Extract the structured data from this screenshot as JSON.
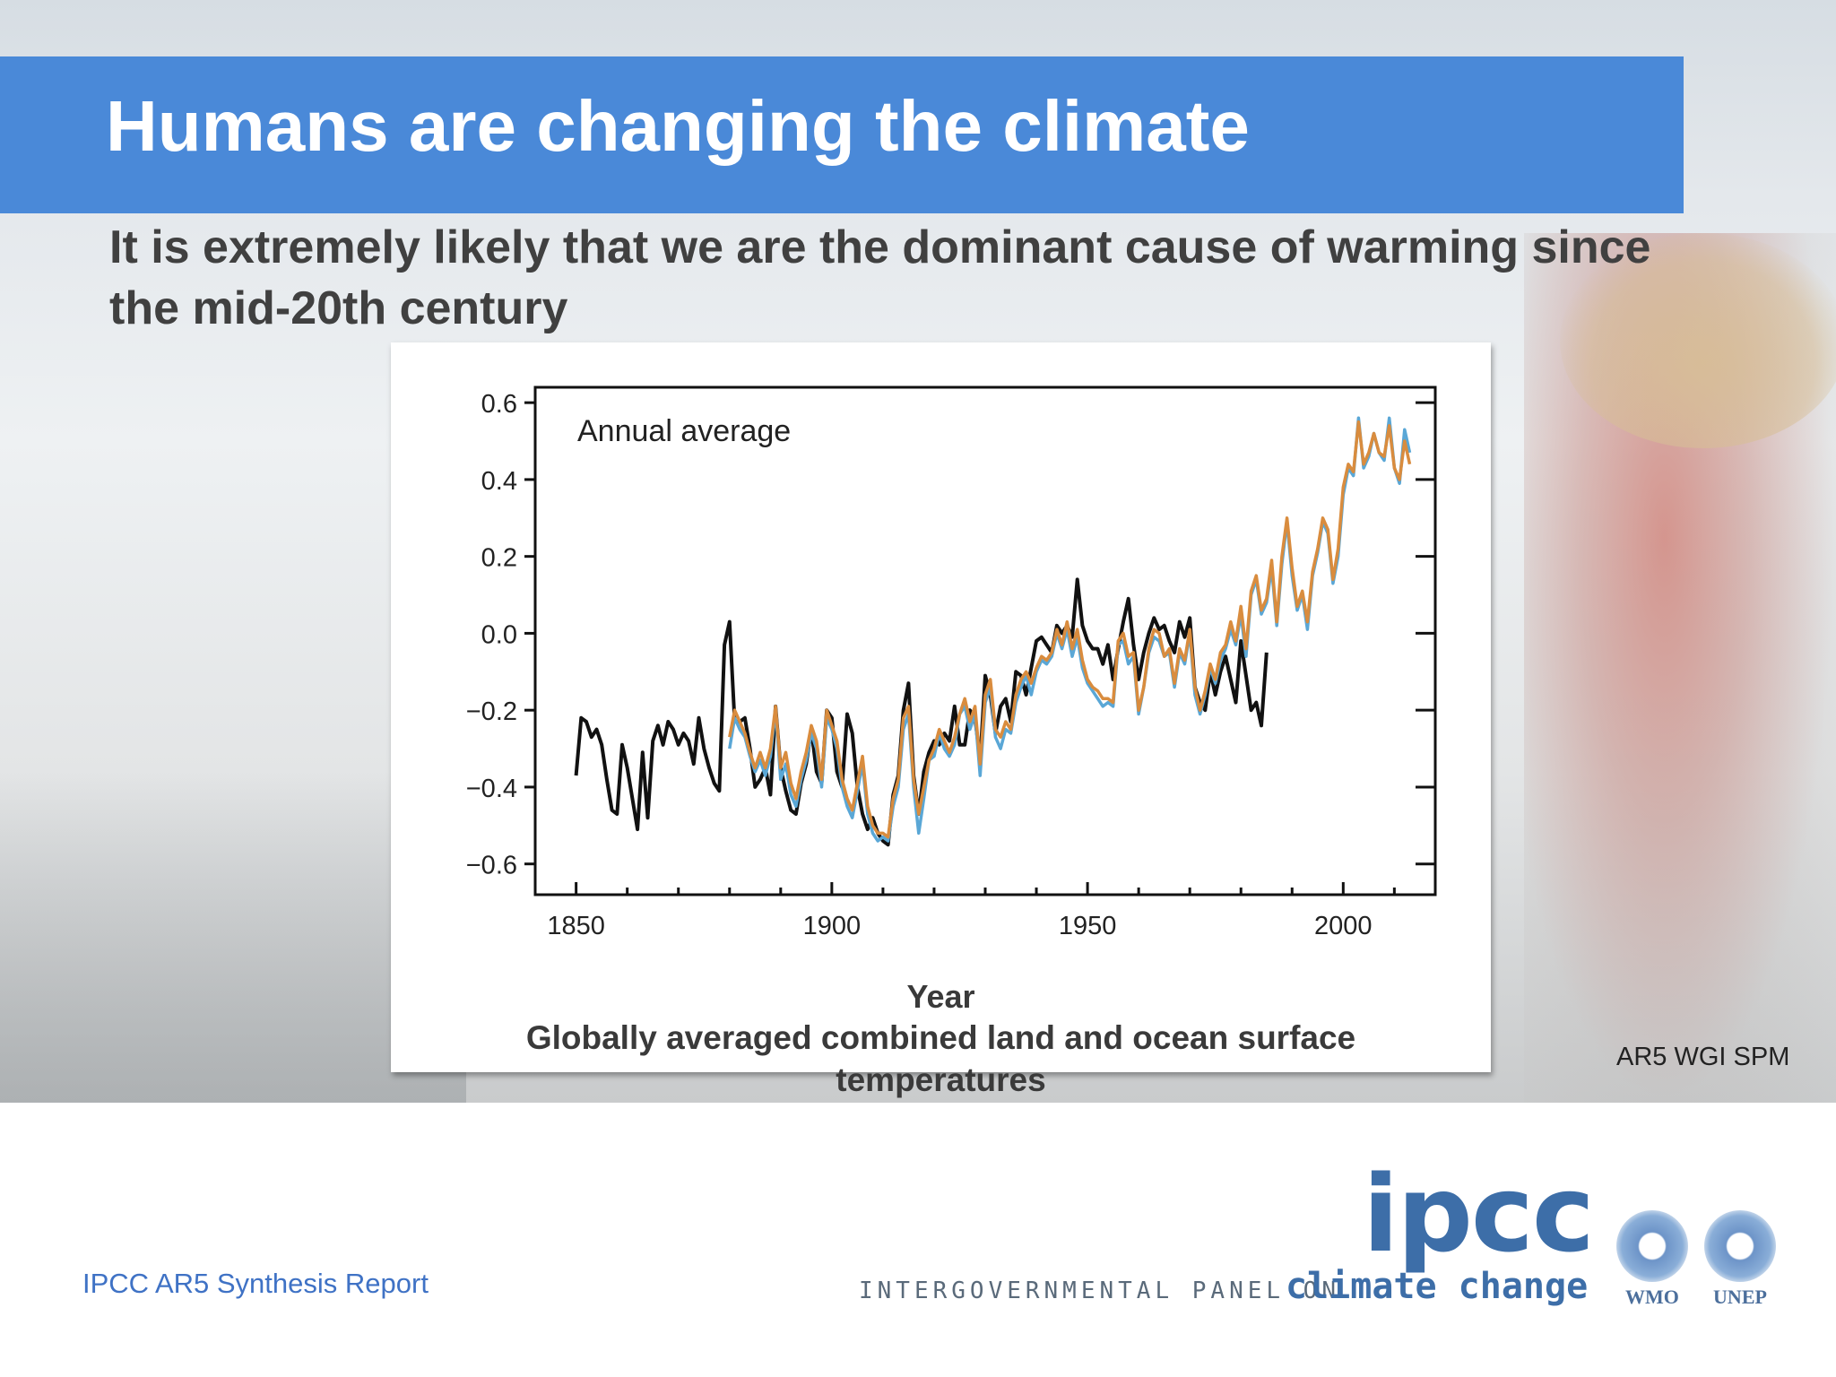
{
  "slide": {
    "title": "Humans are changing the climate",
    "subtitle": "It is extremely likely that we are the dominant cause of warming since the mid-20th century",
    "source": "AR5 WGI SPM",
    "footer": "IPCC AR5 Synthesis Report"
  },
  "logo": {
    "ipcc": "ipcc",
    "panel": "INTERGOVERNMENTAL PANEL ON",
    "climate_change": "climate change",
    "wmo": "WMO",
    "unep": "UNEP"
  },
  "colors": {
    "title_bar": "#4a89d8",
    "series_black": "#111111",
    "series_orange": "#d98c3e",
    "series_blue": "#5aa7d6"
  },
  "chart_data": {
    "type": "line",
    "inner_label": "Annual average",
    "xlabel": "Year",
    "caption": "Globally averaged combined land and ocean surface temperatures",
    "xlim": [
      1842,
      2018
    ],
    "ylim": [
      -0.68,
      0.64
    ],
    "xticks": [
      1850,
      1900,
      1950,
      2000
    ],
    "yticks": [
      0.6,
      0.4,
      0.2,
      0.0,
      -0.2,
      -0.4,
      -0.6
    ],
    "ytick_labels": [
      "0.6",
      "0.4",
      "0.2",
      "0.0",
      "−0.2",
      "−0.4",
      "−0.6"
    ],
    "series": [
      {
        "color": "#111111",
        "x_start": 1850,
        "values": [
          -0.37,
          -0.22,
          -0.23,
          -0.27,
          -0.25,
          -0.29,
          -0.38,
          -0.46,
          -0.47,
          -0.29,
          -0.35,
          -0.43,
          -0.51,
          -0.31,
          -0.48,
          -0.28,
          -0.24,
          -0.29,
          -0.23,
          -0.25,
          -0.29,
          -0.26,
          -0.28,
          -0.34,
          -0.22,
          -0.3,
          -0.35,
          -0.39,
          -0.41,
          -0.03,
          0.03,
          -0.23,
          -0.23,
          -0.22,
          -0.3,
          -0.4,
          -0.38,
          -0.35,
          -0.42,
          -0.19,
          -0.35,
          -0.41,
          -0.46,
          -0.47,
          -0.39,
          -0.34,
          -0.25,
          -0.36,
          -0.39,
          -0.2,
          -0.22,
          -0.36,
          -0.4,
          -0.21,
          -0.26,
          -0.4,
          -0.47,
          -0.51,
          -0.48,
          -0.52,
          -0.54,
          -0.55,
          -0.42,
          -0.37,
          -0.2,
          -0.13,
          -0.37,
          -0.47,
          -0.36,
          -0.31,
          -0.28,
          -0.29,
          -0.26,
          -0.28,
          -0.19,
          -0.29,
          -0.29,
          -0.2,
          -0.22,
          -0.33,
          -0.11,
          -0.16,
          -0.26,
          -0.19,
          -0.17,
          -0.23,
          -0.1,
          -0.11,
          -0.16,
          -0.09,
          -0.02,
          -0.01,
          -0.03,
          -0.05,
          0.02,
          0.0,
          0.02,
          -0.01,
          0.14,
          0.02,
          -0.02,
          -0.04,
          -0.04,
          -0.08,
          -0.03,
          -0.12,
          -0.04,
          0.03,
          0.09,
          -0.03,
          -0.12,
          -0.05,
          0.0,
          0.04,
          0.01,
          0.02,
          -0.02,
          -0.05,
          0.03,
          -0.01,
          0.04,
          -0.14,
          -0.18,
          -0.2,
          -0.1,
          -0.16,
          -0.1,
          -0.06,
          -0.12,
          -0.18,
          -0.02,
          -0.11,
          -0.2,
          -0.18,
          -0.24,
          -0.05
        ]
      },
      {
        "color": "#5aa7d6",
        "x_start": 1880,
        "values": [
          -0.3,
          -0.22,
          -0.25,
          -0.27,
          -0.32,
          -0.36,
          -0.33,
          -0.37,
          -0.32,
          -0.2,
          -0.38,
          -0.34,
          -0.42,
          -0.45,
          -0.38,
          -0.33,
          -0.26,
          -0.3,
          -0.4,
          -0.22,
          -0.25,
          -0.3,
          -0.4,
          -0.45,
          -0.48,
          -0.41,
          -0.34,
          -0.47,
          -0.52,
          -0.54,
          -0.53,
          -0.54,
          -0.45,
          -0.4,
          -0.25,
          -0.21,
          -0.4,
          -0.52,
          -0.43,
          -0.33,
          -0.32,
          -0.26,
          -0.3,
          -0.32,
          -0.29,
          -0.21,
          -0.19,
          -0.25,
          -0.21,
          -0.37,
          -0.18,
          -0.14,
          -0.27,
          -0.3,
          -0.25,
          -0.26,
          -0.18,
          -0.14,
          -0.11,
          -0.16,
          -0.1,
          -0.07,
          -0.08,
          -0.06,
          0.0,
          -0.04,
          0.01,
          -0.06,
          -0.01,
          -0.09,
          -0.13,
          -0.15,
          -0.17,
          -0.19,
          -0.18,
          -0.19,
          -0.03,
          -0.02,
          -0.08,
          -0.06,
          -0.21,
          -0.14,
          -0.05,
          -0.01,
          -0.02,
          -0.06,
          -0.05,
          -0.14,
          -0.05,
          -0.08,
          0.0,
          -0.16,
          -0.21,
          -0.16,
          -0.09,
          -0.13,
          -0.07,
          -0.04,
          0.01,
          -0.03,
          0.05,
          -0.06,
          0.1,
          0.14,
          0.05,
          0.08,
          0.17,
          0.02,
          0.18,
          0.29,
          0.15,
          0.06,
          0.1,
          0.01,
          0.15,
          0.21,
          0.29,
          0.26,
          0.13,
          0.2,
          0.36,
          0.43,
          0.41,
          0.56,
          0.43,
          0.46,
          0.52,
          0.47,
          0.45,
          0.56,
          0.43,
          0.39,
          0.53,
          0.47
        ]
      },
      {
        "color": "#d98c3e",
        "x_start": 1880,
        "values": [
          -0.27,
          -0.2,
          -0.23,
          -0.26,
          -0.31,
          -0.35,
          -0.31,
          -0.35,
          -0.3,
          -0.19,
          -0.35,
          -0.31,
          -0.39,
          -0.43,
          -0.36,
          -0.31,
          -0.24,
          -0.28,
          -0.38,
          -0.2,
          -0.24,
          -0.28,
          -0.38,
          -0.43,
          -0.46,
          -0.39,
          -0.32,
          -0.45,
          -0.5,
          -0.52,
          -0.52,
          -0.53,
          -0.43,
          -0.38,
          -0.22,
          -0.19,
          -0.38,
          -0.47,
          -0.4,
          -0.33,
          -0.3,
          -0.25,
          -0.28,
          -0.31,
          -0.27,
          -0.21,
          -0.17,
          -0.23,
          -0.19,
          -0.34,
          -0.16,
          -0.12,
          -0.25,
          -0.27,
          -0.23,
          -0.25,
          -0.16,
          -0.12,
          -0.1,
          -0.13,
          -0.09,
          -0.06,
          -0.07,
          -0.05,
          0.01,
          -0.03,
          0.03,
          -0.04,
          0.01,
          -0.07,
          -0.12,
          -0.14,
          -0.15,
          -0.17,
          -0.17,
          -0.18,
          -0.02,
          0.0,
          -0.06,
          -0.05,
          -0.2,
          -0.14,
          -0.04,
          0.01,
          0.0,
          -0.06,
          -0.04,
          -0.13,
          -0.04,
          -0.07,
          0.01,
          -0.14,
          -0.2,
          -0.15,
          -0.08,
          -0.12,
          -0.05,
          -0.03,
          0.03,
          -0.02,
          0.07,
          -0.04,
          0.11,
          0.15,
          0.06,
          0.09,
          0.19,
          0.03,
          0.2,
          0.3,
          0.17,
          0.07,
          0.11,
          0.03,
          0.16,
          0.22,
          0.3,
          0.27,
          0.14,
          0.22,
          0.38,
          0.44,
          0.42,
          0.55,
          0.44,
          0.47,
          0.52,
          0.47,
          0.46,
          0.54,
          0.43,
          0.4,
          0.5,
          0.44
        ]
      }
    ]
  }
}
